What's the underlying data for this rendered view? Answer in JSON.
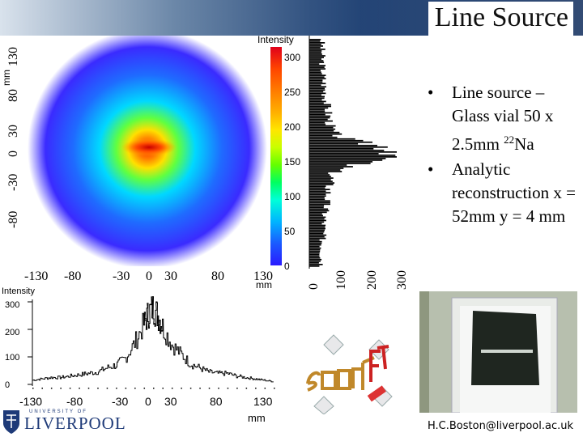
{
  "slide": {
    "title": "Line Source",
    "bullets": [
      {
        "prefix": "Line source – Glass vial 50 x 2.5mm ",
        "sup": "22",
        "suffix": "Na"
      },
      {
        "text": "Analytic reconstruction x = 52mm y = 4 mm"
      }
    ],
    "email": "H.C.Boston@liverpool.ac.uk"
  },
  "logos": {
    "liverpool": {
      "top_text": "UNIVERSITY OF",
      "main_text": "LIVERPOOL"
    },
    "smartpet": {
      "icon": "smartpet-logo"
    }
  },
  "icons": [
    "liverpool-crest-icon",
    "smartpet-logo-icon",
    "detector-photo"
  ],
  "chart_data": [
    {
      "type": "heatmap",
      "title": "",
      "colorbar_label": "Intensity",
      "xlabel": "mm",
      "ylabel": "mm",
      "x_ticks": [
        "-130",
        "-80",
        "-30",
        "0",
        "30",
        "80",
        "130"
      ],
      "y_ticks": [
        "-80",
        "-30",
        "0",
        "30",
        "80",
        "130"
      ],
      "colorbar_ticks": [
        "0",
        "50",
        "100",
        "150",
        "200",
        "250",
        "300"
      ],
      "zlim": [
        0,
        300
      ],
      "hotspot": {
        "x": 0,
        "y": 0,
        "peak": 300
      },
      "colors": {
        "low": "#2a1aff",
        "mid": "#00ff60",
        "high": "#e0001a"
      }
    },
    {
      "type": "line",
      "title": "",
      "ylabel": "Intensity",
      "xlabel": "mm",
      "x_ticks": [
        "-130",
        "-80",
        "-30",
        "0",
        "30",
        "80",
        "130"
      ],
      "y_ticks": [
        "0",
        "100",
        "200",
        "300"
      ],
      "xlim": [
        -130,
        130
      ],
      "ylim": [
        0,
        300
      ],
      "x": [
        -130,
        -120,
        -110,
        -100,
        -90,
        -80,
        -70,
        -60,
        -50,
        -40,
        -30,
        -20,
        -10,
        -5,
        0,
        5,
        10,
        20,
        30,
        40,
        50,
        60,
        70,
        80,
        90,
        100,
        110,
        120,
        130
      ],
      "values": [
        15,
        20,
        25,
        25,
        30,
        35,
        40,
        45,
        60,
        70,
        95,
        150,
        220,
        260,
        280,
        250,
        210,
        145,
        110,
        75,
        60,
        45,
        40,
        40,
        30,
        25,
        20,
        15,
        10
      ]
    },
    {
      "type": "bar",
      "orientation": "horizontal",
      "title": "",
      "x_ticks": [
        "0",
        "100",
        "200",
        "300"
      ],
      "xlim": [
        0,
        300
      ],
      "y_range_mm": [
        -130,
        130
      ],
      "peak_center_mm": 0
    }
  ]
}
